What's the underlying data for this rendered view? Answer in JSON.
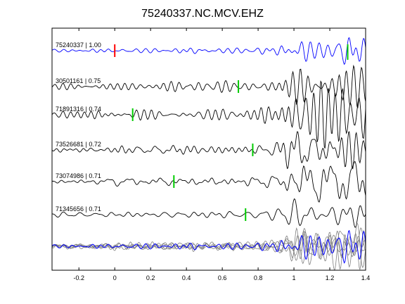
{
  "chart_data": {
    "type": "line",
    "title": "75240337.NC.MCV.EHZ",
    "xlabel": "",
    "ylabel": "",
    "xlim": [
      -0.35,
      1.4
    ],
    "xticks": [
      -0.2,
      0,
      0.2,
      0.4,
      0.6,
      0.8,
      1,
      1.2,
      1.4
    ],
    "xtick_labels": [
      "-0.2",
      "0",
      "0.2",
      "0.4",
      "0.6",
      "0.8",
      "1",
      "1.2",
      "1.4"
    ],
    "grid": false,
    "colors": {
      "reference_trace": "#0000ff",
      "trace": "#000000",
      "stack_trace": "#808080",
      "reference_pick": "#ff0000",
      "pick": "#00cc00"
    },
    "traces": [
      {
        "label": "75240337 | 1.00",
        "color": "#0000ff",
        "pick_time": 0.0,
        "pick_color": "#ff0000",
        "amp_scale": 0.4,
        "seed": 11
      },
      {
        "label": "30501161 | 0.75",
        "color": "#000000",
        "pick_time": 0.69,
        "pick_color": "#00cc00",
        "amp_scale": 1.0,
        "seed": 23
      },
      {
        "label": "71891316 | 0.74",
        "color": "#000000",
        "pick_time": 0.1,
        "pick_color": "#00cc00",
        "amp_scale": 1.0,
        "seed": 37
      },
      {
        "label": "73526681 | 0.72",
        "color": "#000000",
        "pick_time": 0.77,
        "pick_color": "#00cc00",
        "amp_scale": 1.0,
        "seed": 41
      },
      {
        "label": "73074986 | 0.71",
        "color": "#000000",
        "pick_time": 0.33,
        "pick_color": "#00cc00",
        "amp_scale": 1.0,
        "seed": 53
      },
      {
        "label": "71345656 | 0.71",
        "color": "#000000",
        "pick_time": 0.73,
        "pick_color": "#00cc00",
        "amp_scale": 1.0,
        "seed": 67
      }
    ],
    "extra_pick_first_trace": 1.3,
    "overlay": {
      "label": "",
      "colors": [
        "#808080",
        "#0000ff"
      ],
      "count": 6
    }
  }
}
